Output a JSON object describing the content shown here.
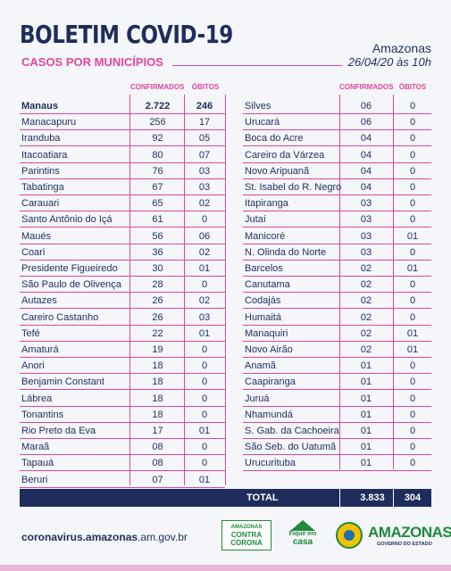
{
  "header": {
    "title": "BOLETIM COVID-19",
    "subtitle": "CASOS POR MUNICÍPIOS",
    "region": "Amazonas",
    "date": "26/04/20 às 10h"
  },
  "columns": {
    "confirmed": "CONFIRMADOS",
    "deaths": "ÓBITOS"
  },
  "left_rows": [
    {
      "name": "Manaus",
      "confirmed": "2.722",
      "deaths": "246"
    },
    {
      "name": "Manacapuru",
      "confirmed": "256",
      "deaths": "17"
    },
    {
      "name": "Iranduba",
      "confirmed": "92",
      "deaths": "05"
    },
    {
      "name": "Itacoatiara",
      "confirmed": "80",
      "deaths": "07"
    },
    {
      "name": "Parintins",
      "confirmed": "76",
      "deaths": "03"
    },
    {
      "name": "Tabatinga",
      "confirmed": "67",
      "deaths": "03"
    },
    {
      "name": "Carauari",
      "confirmed": "65",
      "deaths": "02"
    },
    {
      "name": "Santo Antônio do Içá",
      "confirmed": "61",
      "deaths": "0"
    },
    {
      "name": "Maués",
      "confirmed": "56",
      "deaths": "06"
    },
    {
      "name": "Coari",
      "confirmed": "36",
      "deaths": "02"
    },
    {
      "name": "Presidente Figueiredo",
      "confirmed": "30",
      "deaths": "01"
    },
    {
      "name": "São Paulo de Olivença",
      "confirmed": "28",
      "deaths": "0"
    },
    {
      "name": "Autazes",
      "confirmed": "26",
      "deaths": "02"
    },
    {
      "name": "Careiro Castanho",
      "confirmed": "26",
      "deaths": "03"
    },
    {
      "name": "Tefé",
      "confirmed": "22",
      "deaths": "01"
    },
    {
      "name": "Amaturá",
      "confirmed": "19",
      "deaths": "0"
    },
    {
      "name": "Anori",
      "confirmed": "18",
      "deaths": "0"
    },
    {
      "name": "Benjamin Constant",
      "confirmed": "18",
      "deaths": "0"
    },
    {
      "name": "Lábrea",
      "confirmed": "18",
      "deaths": "0"
    },
    {
      "name": "Tonantins",
      "confirmed": "18",
      "deaths": "0"
    },
    {
      "name": "Rio Preto da Eva",
      "confirmed": "17",
      "deaths": "01"
    },
    {
      "name": "Maraã",
      "confirmed": "08",
      "deaths": "0"
    },
    {
      "name": "Tapauá",
      "confirmed": "08",
      "deaths": "0"
    },
    {
      "name": "Beruri",
      "confirmed": "07",
      "deaths": "01"
    }
  ],
  "right_rows": [
    {
      "name": "Silves",
      "confirmed": "06",
      "deaths": "0"
    },
    {
      "name": "Urucará",
      "confirmed": "06",
      "deaths": "0"
    },
    {
      "name": "Boca do Acre",
      "confirmed": "04",
      "deaths": "0"
    },
    {
      "name": "Careiro da Várzea",
      "confirmed": "04",
      "deaths": "0"
    },
    {
      "name": "Novo Aripuanã",
      "confirmed": "04",
      "deaths": "0"
    },
    {
      "name": "St. Isabel do R. Negro",
      "confirmed": "04",
      "deaths": "0"
    },
    {
      "name": "Itapiranga",
      "confirmed": "03",
      "deaths": "0"
    },
    {
      "name": "Jutaí",
      "confirmed": "03",
      "deaths": "0"
    },
    {
      "name": "Manicoré",
      "confirmed": "03",
      "deaths": "01"
    },
    {
      "name": "N. Olinda do Norte",
      "confirmed": "03",
      "deaths": "0"
    },
    {
      "name": "Barcelos",
      "confirmed": "02",
      "deaths": "01"
    },
    {
      "name": "Canutama",
      "confirmed": "02",
      "deaths": "0"
    },
    {
      "name": "Codajás",
      "confirmed": "02",
      "deaths": "0"
    },
    {
      "name": "Humaitá",
      "confirmed": "02",
      "deaths": "0"
    },
    {
      "name": "Manaquiri",
      "confirmed": "02",
      "deaths": "01"
    },
    {
      "name": "Novo Airão",
      "confirmed": "02",
      "deaths": "01"
    },
    {
      "name": "Anamã",
      "confirmed": "01",
      "deaths": "0"
    },
    {
      "name": "Caapiranga",
      "confirmed": "01",
      "deaths": "0"
    },
    {
      "name": "Juruá",
      "confirmed": "01",
      "deaths": "0"
    },
    {
      "name": "Nhamundá",
      "confirmed": "01",
      "deaths": "0"
    },
    {
      "name": "S. Gab. da Cachoeira",
      "confirmed": "01",
      "deaths": "0"
    },
    {
      "name": "São Seb. do Uatumã",
      "confirmed": "01",
      "deaths": "0"
    },
    {
      "name": "Urucurituba",
      "confirmed": "01",
      "deaths": "0"
    }
  ],
  "total": {
    "label": "TOTAL",
    "confirmed": "3.833",
    "deaths": "304"
  },
  "footer": {
    "url_bold": "coronavirus.amazonas",
    "url_rest": ".am.gov.br",
    "logo1_line1": "AMAZONAS",
    "logo1_line2": "CONTRA",
    "logo1_line3": "CORONA",
    "logo2_line1": "Fique em",
    "logo2_line2": "casa",
    "logo3_name": "AMAZONAS",
    "logo3_sub": "GOVERNO DO ESTADO"
  },
  "colors": {
    "navy": "#1f2d5c",
    "pink": "#e0479b",
    "green": "#1f8a3b"
  }
}
